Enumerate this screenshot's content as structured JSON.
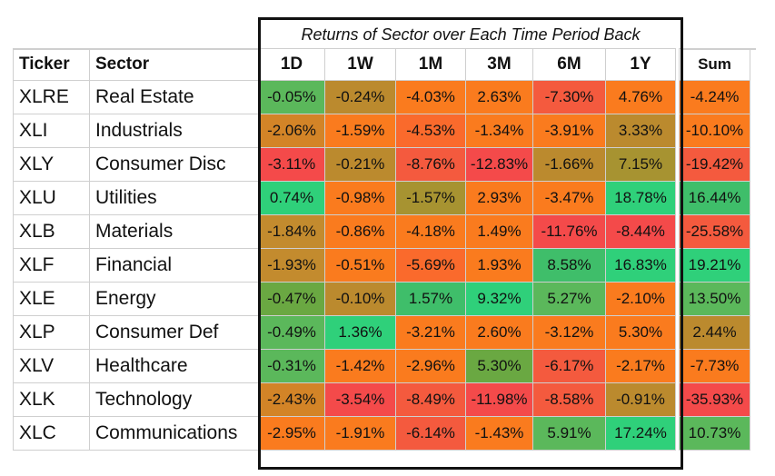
{
  "chart_data": {
    "type": "table",
    "title": "Returns of Sector over Each Time Period Back",
    "columns": [
      "Ticker",
      "Sector",
      "1D",
      "1W",
      "1M",
      "3M",
      "6M",
      "1Y",
      "Sum"
    ],
    "period_columns": [
      "1D",
      "1W",
      "1M",
      "3M",
      "6M",
      "1Y"
    ],
    "rows": [
      {
        "ticker": "XLRE",
        "sector": "Real Estate",
        "values": [
          "-0.05%",
          "-0.24%",
          "-4.03%",
          "2.63%",
          "-7.30%",
          "4.76%"
        ],
        "sum": "-4.24%",
        "colors": [
          "#5bb85b",
          "#bb8a2e",
          "#fa7b1e",
          "#fa7b1e",
          "#f45a3e",
          "#fa7b1e"
        ],
        "sum_color": "#fa7b1e"
      },
      {
        "ticker": "XLI",
        "sector": "Industrials",
        "values": [
          "-2.06%",
          "-1.59%",
          "-4.53%",
          "-1.34%",
          "-3.91%",
          "3.33%"
        ],
        "sum": "-10.10%",
        "colors": [
          "#d38427",
          "#fa7b1e",
          "#fa6a2c",
          "#fa7b1e",
          "#fa7b1e",
          "#bb8a2e"
        ],
        "sum_color": "#fa7b1e"
      },
      {
        "ticker": "XLY",
        "sector": "Consumer Disc",
        "values": [
          "-3.11%",
          "-0.21%",
          "-8.76%",
          "-12.83%",
          "-1.66%",
          "7.15%"
        ],
        "sum": "-19.42%",
        "colors": [
          "#f44a4a",
          "#bb8a2e",
          "#f45a3e",
          "#f44a4a",
          "#bb8a2e",
          "#a79331"
        ],
        "sum_color": "#f45a3e"
      },
      {
        "ticker": "XLU",
        "sector": "Utilities",
        "values": [
          "0.74%",
          "-0.98%",
          "-1.57%",
          "2.93%",
          "-3.47%",
          "18.78%"
        ],
        "sum": "16.44%",
        "colors": [
          "#2fd07a",
          "#fa7b1e",
          "#a79331",
          "#fa7b1e",
          "#fa7b1e",
          "#2fd07a"
        ],
        "sum_color": "#3fbe6a"
      },
      {
        "ticker": "XLB",
        "sector": "Materials",
        "values": [
          "-1.84%",
          "-0.86%",
          "-4.18%",
          "1.49%",
          "-11.76%",
          "-8.44%"
        ],
        "sum": "-25.58%",
        "colors": [
          "#c38b2e",
          "#fa7b1e",
          "#fa7b1e",
          "#fa7b1e",
          "#f44a4a",
          "#f44a4a"
        ],
        "sum_color": "#f45a3e"
      },
      {
        "ticker": "XLF",
        "sector": "Financial",
        "values": [
          "-1.93%",
          "-0.51%",
          "-5.69%",
          "1.93%",
          "8.58%",
          "16.83%"
        ],
        "sum": "19.21%",
        "colors": [
          "#c38b2e",
          "#fa7b1e",
          "#fa6a2c",
          "#fa7b1e",
          "#3fbe6a",
          "#2fd07a"
        ],
        "sum_color": "#2fd07a"
      },
      {
        "ticker": "XLE",
        "sector": "Energy",
        "values": [
          "-0.47%",
          "-0.10%",
          "1.57%",
          "9.32%",
          "5.27%",
          "-2.10%"
        ],
        "sum": "13.50%",
        "colors": [
          "#6aa842",
          "#bb8a2e",
          "#3fbe6a",
          "#2fd07a",
          "#5bb85b",
          "#fa7b1e"
        ],
        "sum_color": "#5bb85b"
      },
      {
        "ticker": "XLP",
        "sector": "Consumer Def",
        "values": [
          "-0.49%",
          "1.36%",
          "-3.21%",
          "2.60%",
          "-3.12%",
          "5.30%"
        ],
        "sum": "2.44%",
        "colors": [
          "#5bb85b",
          "#2fd07a",
          "#fa7b1e",
          "#fa7b1e",
          "#fa7b1e",
          "#fa7b1e"
        ],
        "sum_color": "#bb8a2e"
      },
      {
        "ticker": "XLV",
        "sector": "Healthcare",
        "values": [
          "-0.31%",
          "-1.42%",
          "-2.96%",
          "5.30%",
          "-6.17%",
          "-2.17%"
        ],
        "sum": "-7.73%",
        "colors": [
          "#5bb85b",
          "#fa7b1e",
          "#fa7b1e",
          "#6aa842",
          "#f45a3e",
          "#fa7b1e"
        ],
        "sum_color": "#fa7b1e"
      },
      {
        "ticker": "XLK",
        "sector": "Technology",
        "values": [
          "-2.43%",
          "-3.54%",
          "-8.49%",
          "-11.98%",
          "-8.58%",
          "-0.91%"
        ],
        "sum": "-35.93%",
        "colors": [
          "#d38427",
          "#f44a4a",
          "#f45a3e",
          "#f44a4a",
          "#f45a3e",
          "#bb8a2e"
        ],
        "sum_color": "#f44a4a"
      },
      {
        "ticker": "XLC",
        "sector": "Communications",
        "values": [
          "-2.95%",
          "-1.91%",
          "-6.14%",
          "-1.43%",
          "5.91%",
          "17.24%"
        ],
        "sum": "10.73%",
        "colors": [
          "#fa7b1e",
          "#fa7b1e",
          "#f45a3e",
          "#fa7b1e",
          "#5bb85b",
          "#2fd07a"
        ],
        "sum_color": "#5bb85b"
      }
    ]
  }
}
